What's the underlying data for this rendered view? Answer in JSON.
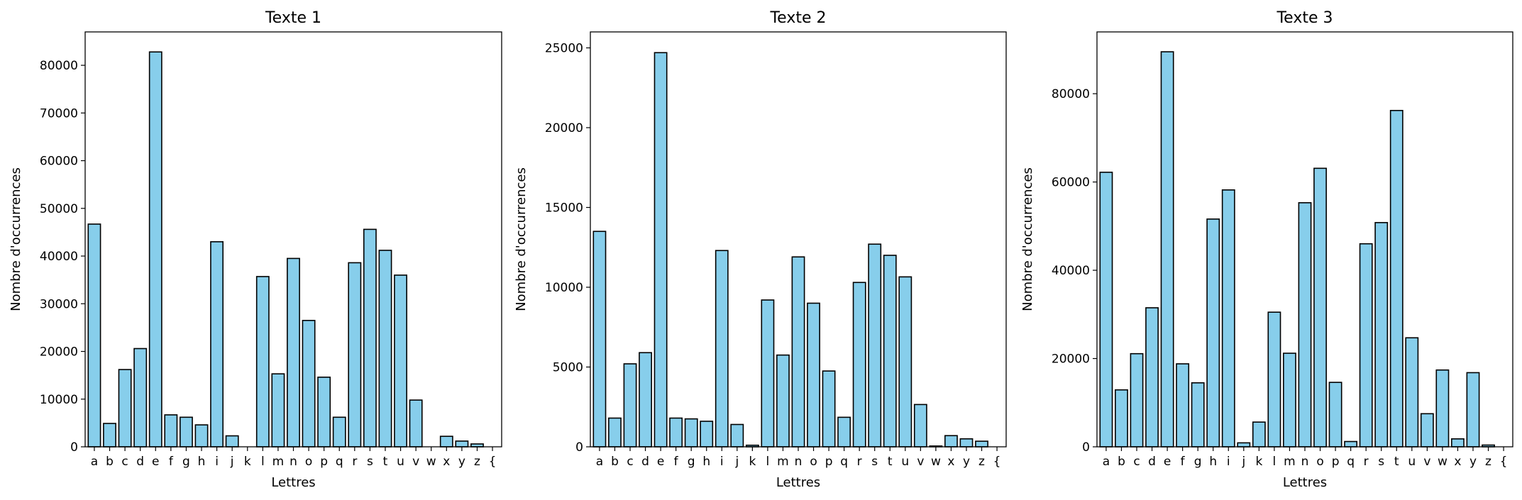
{
  "colors": {
    "bar_fill": "#87CEEB",
    "bar_edge": "#000000"
  },
  "chart_data": [
    {
      "type": "bar",
      "title": "Texte 1",
      "xlabel": "Lettres",
      "ylabel": "Nombre d'occurrences",
      "ylim": [
        0,
        87000
      ],
      "yticks": [
        0,
        10000,
        20000,
        30000,
        40000,
        50000,
        60000,
        70000,
        80000
      ],
      "categories": [
        "a",
        "b",
        "c",
        "d",
        "e",
        "f",
        "g",
        "h",
        "i",
        "j",
        "k",
        "l",
        "m",
        "n",
        "o",
        "p",
        "q",
        "r",
        "s",
        "t",
        "u",
        "v",
        "w",
        "x",
        "y",
        "z",
        "{"
      ],
      "values": [
        46700,
        4900,
        16200,
        20600,
        82800,
        6700,
        6200,
        4600,
        43000,
        2300,
        0,
        35700,
        15300,
        39500,
        26500,
        14600,
        6200,
        38600,
        45600,
        41200,
        36000,
        9800,
        0,
        2200,
        1200,
        600,
        0
      ]
    },
    {
      "type": "bar",
      "title": "Texte 2",
      "xlabel": "Lettres",
      "ylabel": "Nombre d'occurrences",
      "ylim": [
        0,
        26000
      ],
      "yticks": [
        0,
        5000,
        10000,
        15000,
        20000,
        25000
      ],
      "categories": [
        "a",
        "b",
        "c",
        "d",
        "e",
        "f",
        "g",
        "h",
        "i",
        "j",
        "k",
        "l",
        "m",
        "n",
        "o",
        "p",
        "q",
        "r",
        "s",
        "t",
        "u",
        "v",
        "w",
        "x",
        "y",
        "z",
        "{"
      ],
      "values": [
        13500,
        1800,
        5200,
        5900,
        24700,
        1800,
        1750,
        1600,
        12300,
        1400,
        100,
        9200,
        5750,
        11900,
        9000,
        4750,
        1850,
        10300,
        12700,
        12000,
        10650,
        2650,
        50,
        700,
        500,
        350,
        0
      ]
    },
    {
      "type": "bar",
      "title": "Texte 3",
      "xlabel": "Lettres",
      "ylabel": "Nombre d'occurrences",
      "ylim": [
        0,
        94000
      ],
      "yticks": [
        0,
        20000,
        40000,
        60000,
        80000
      ],
      "categories": [
        "a",
        "b",
        "c",
        "d",
        "e",
        "f",
        "g",
        "h",
        "i",
        "j",
        "k",
        "l",
        "m",
        "n",
        "o",
        "p",
        "q",
        "r",
        "s",
        "t",
        "u",
        "v",
        "w",
        "x",
        "y",
        "z",
        "{"
      ],
      "values": [
        62200,
        12900,
        21100,
        31500,
        89500,
        18800,
        14500,
        51600,
        58200,
        900,
        5600,
        30500,
        21200,
        55300,
        63100,
        14600,
        1200,
        46000,
        50800,
        76200,
        24700,
        7500,
        17400,
        1800,
        16800,
        400,
        0
      ]
    }
  ]
}
